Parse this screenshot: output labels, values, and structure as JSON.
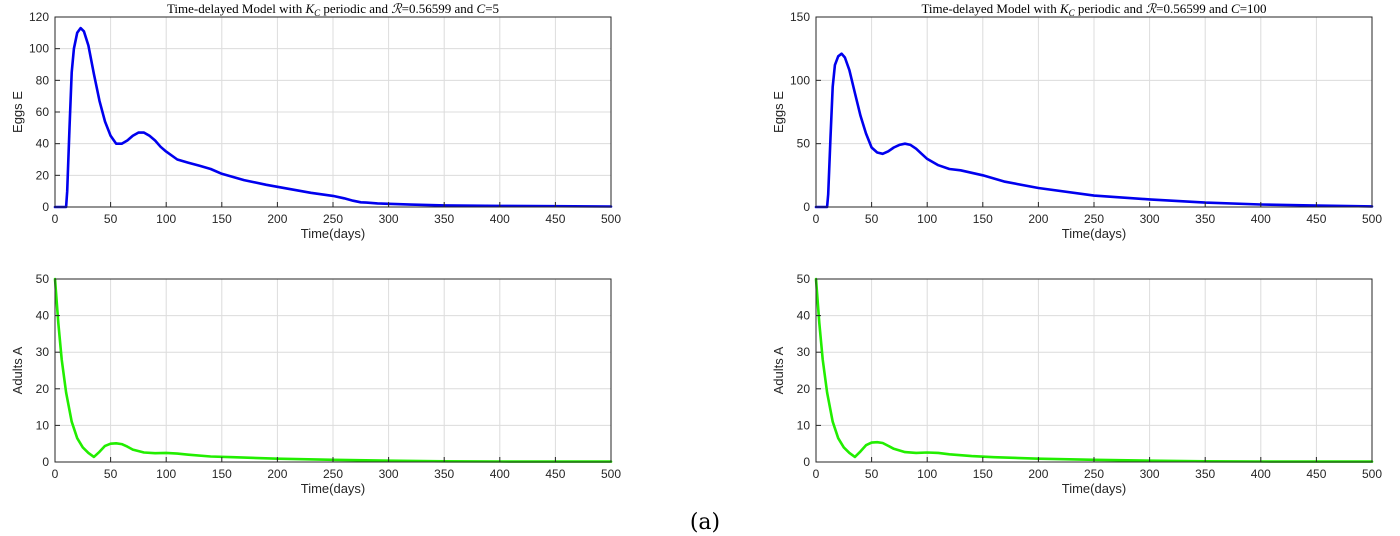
{
  "caption": "(a)",
  "chart_data": [
    {
      "type": "line",
      "title": {
        "pre": "Time-delayed Model with ",
        "k": "K",
        "ksub": "C",
        "mid": " periodic and ",
        "r": "ℛ",
        "mid2": "=0.56599 and ",
        "c": "C",
        "post": "=5"
      },
      "xlabel": "Time(days)",
      "ylabel": "Eggs E",
      "xlim": [
        0,
        500
      ],
      "ylim": [
        0,
        120
      ],
      "xticks": [
        0,
        50,
        100,
        150,
        200,
        250,
        300,
        350,
        400,
        450,
        500
      ],
      "yticks": [
        0,
        20,
        40,
        60,
        80,
        100,
        120
      ],
      "grid": true,
      "color": "#0000ee",
      "series": [
        {
          "x": [
            0,
            10,
            11,
            13,
            15,
            17,
            20,
            23,
            26,
            30,
            35,
            40,
            45,
            50,
            55,
            60,
            65,
            70,
            75,
            80,
            85,
            90,
            95,
            100,
            110,
            120,
            130,
            140,
            150,
            170,
            190,
            210,
            230,
            250,
            260,
            268,
            275,
            280,
            290,
            300,
            320,
            350,
            400,
            450,
            500
          ],
          "y": [
            0,
            0,
            10,
            50,
            85,
            100,
            110,
            113,
            111,
            102,
            84,
            67,
            54,
            45,
            40,
            40,
            42,
            45,
            47,
            47,
            45,
            42,
            38,
            35,
            30,
            28,
            26,
            24,
            21,
            17,
            14,
            11.5,
            9,
            7,
            5.5,
            4,
            3,
            2.8,
            2.3,
            2,
            1.5,
            1,
            0.7,
            0.5,
            0.3
          ]
        }
      ]
    },
    {
      "type": "line",
      "title": {
        "pre": "",
        "k": "",
        "ksub": "",
        "mid": "",
        "r": "",
        "mid2": "",
        "c": "",
        "post": ""
      },
      "xlabel": "Time(days)",
      "ylabel": "Adults A",
      "xlim": [
        0,
        500
      ],
      "ylim": [
        0,
        50
      ],
      "xticks": [
        0,
        50,
        100,
        150,
        200,
        250,
        300,
        350,
        400,
        450,
        500
      ],
      "yticks": [
        0,
        10,
        20,
        30,
        40,
        50
      ],
      "grid": true,
      "color": "#22ee00",
      "series": [
        {
          "x": [
            0,
            3,
            6,
            10,
            15,
            20,
            25,
            30,
            35,
            40,
            45,
            50,
            55,
            60,
            65,
            70,
            80,
            90,
            100,
            110,
            120,
            140,
            160,
            200,
            250,
            300,
            350,
            400,
            450,
            500
          ],
          "y": [
            50,
            38,
            28,
            19,
            11,
            6.5,
            4,
            2.5,
            1.4,
            2.8,
            4.4,
            5,
            5.1,
            4.9,
            4.2,
            3.4,
            2.6,
            2.4,
            2.5,
            2.3,
            2,
            1.5,
            1.3,
            0.9,
            0.6,
            0.35,
            0.2,
            0.15,
            0.1,
            0.1
          ]
        }
      ]
    },
    {
      "type": "line",
      "title": {
        "pre": "Time-delayed Model with ",
        "k": "K",
        "ksub": "C",
        "mid": " periodic and ",
        "r": "ℛ",
        "mid2": "=0.56599 and ",
        "c": "C",
        "post": "=100"
      },
      "xlabel": "Time(days)",
      "ylabel": "Eggs E",
      "xlim": [
        0,
        500
      ],
      "ylim": [
        0,
        150
      ],
      "xticks": [
        0,
        50,
        100,
        150,
        200,
        250,
        300,
        350,
        400,
        450,
        500
      ],
      "yticks": [
        0,
        50,
        100,
        150
      ],
      "grid": true,
      "color": "#0000ee",
      "series": [
        {
          "x": [
            0,
            10,
            11,
            13,
            15,
            17,
            20,
            23,
            26,
            30,
            35,
            40,
            45,
            50,
            55,
            60,
            65,
            70,
            75,
            80,
            85,
            90,
            95,
            100,
            110,
            120,
            130,
            140,
            150,
            170,
            200,
            250,
            300,
            350,
            400,
            450,
            500
          ],
          "y": [
            0,
            0,
            10,
            55,
            95,
            112,
            119,
            121,
            118,
            108,
            90,
            72,
            58,
            47,
            43,
            42,
            44,
            47,
            49,
            50,
            49,
            46,
            42,
            38,
            33,
            30,
            29,
            27,
            25,
            20,
            15,
            9,
            6,
            3.5,
            2,
            1.2,
            0.5
          ]
        }
      ]
    },
    {
      "type": "line",
      "title": {
        "pre": "",
        "k": "",
        "ksub": "",
        "mid": "",
        "r": "",
        "mid2": "",
        "c": "",
        "post": ""
      },
      "xlabel": "Time(days)",
      "ylabel": "Adults A",
      "xlim": [
        0,
        500
      ],
      "ylim": [
        0,
        50
      ],
      "xticks": [
        0,
        50,
        100,
        150,
        200,
        250,
        300,
        350,
        400,
        450,
        500
      ],
      "yticks": [
        0,
        10,
        20,
        30,
        40,
        50
      ],
      "grid": true,
      "color": "#22ee00",
      "series": [
        {
          "x": [
            0,
            3,
            6,
            10,
            15,
            20,
            25,
            30,
            35,
            40,
            45,
            50,
            55,
            60,
            65,
            70,
            80,
            90,
            100,
            110,
            120,
            140,
            160,
            200,
            250,
            300,
            350,
            400,
            450,
            500
          ],
          "y": [
            50,
            38,
            28,
            19,
            11,
            6.5,
            4,
            2.5,
            1.4,
            2.9,
            4.6,
            5.3,
            5.4,
            5.2,
            4.4,
            3.6,
            2.7,
            2.5,
            2.6,
            2.5,
            2.1,
            1.6,
            1.3,
            0.9,
            0.6,
            0.35,
            0.2,
            0.15,
            0.1,
            0.1
          ]
        }
      ]
    }
  ]
}
